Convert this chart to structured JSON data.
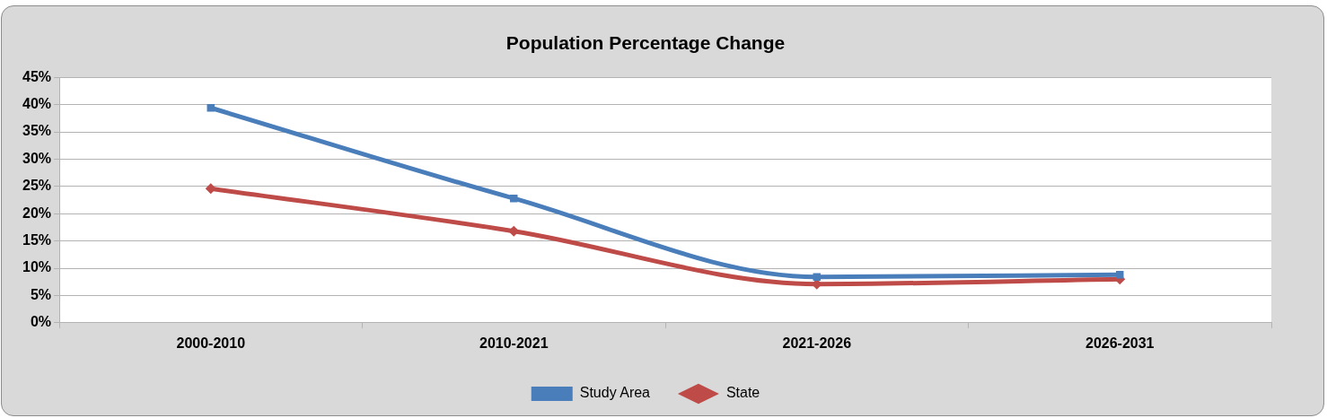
{
  "chart_data": {
    "type": "line",
    "title": "Population Percentage Change",
    "categories": [
      "2000-2010",
      "2010-2021",
      "2021-2026",
      "2026-2031"
    ],
    "series": [
      {
        "name": "Study Area",
        "color": "#4a7ebb",
        "marker": "square",
        "values": [
          39.4,
          22.8,
          8.4,
          8.8
        ]
      },
      {
        "name": "State",
        "color": "#be4b48",
        "marker": "diamond",
        "values": [
          24.6,
          16.8,
          7.1,
          8.0
        ]
      }
    ],
    "ylim": [
      0,
      45
    ],
    "yticks": [
      {
        "value": 0,
        "label": "0%"
      },
      {
        "value": 5,
        "label": "5%"
      },
      {
        "value": 10,
        "label": "10%"
      },
      {
        "value": 15,
        "label": "15%"
      },
      {
        "value": 20,
        "label": "20%"
      },
      {
        "value": 25,
        "label": "25%"
      },
      {
        "value": 30,
        "label": "30%"
      },
      {
        "value": 35,
        "label": "35%"
      },
      {
        "value": 40,
        "label": "40%"
      },
      {
        "value": 45,
        "label": "45%"
      }
    ],
    "grid": "y",
    "legend": "bottom"
  }
}
